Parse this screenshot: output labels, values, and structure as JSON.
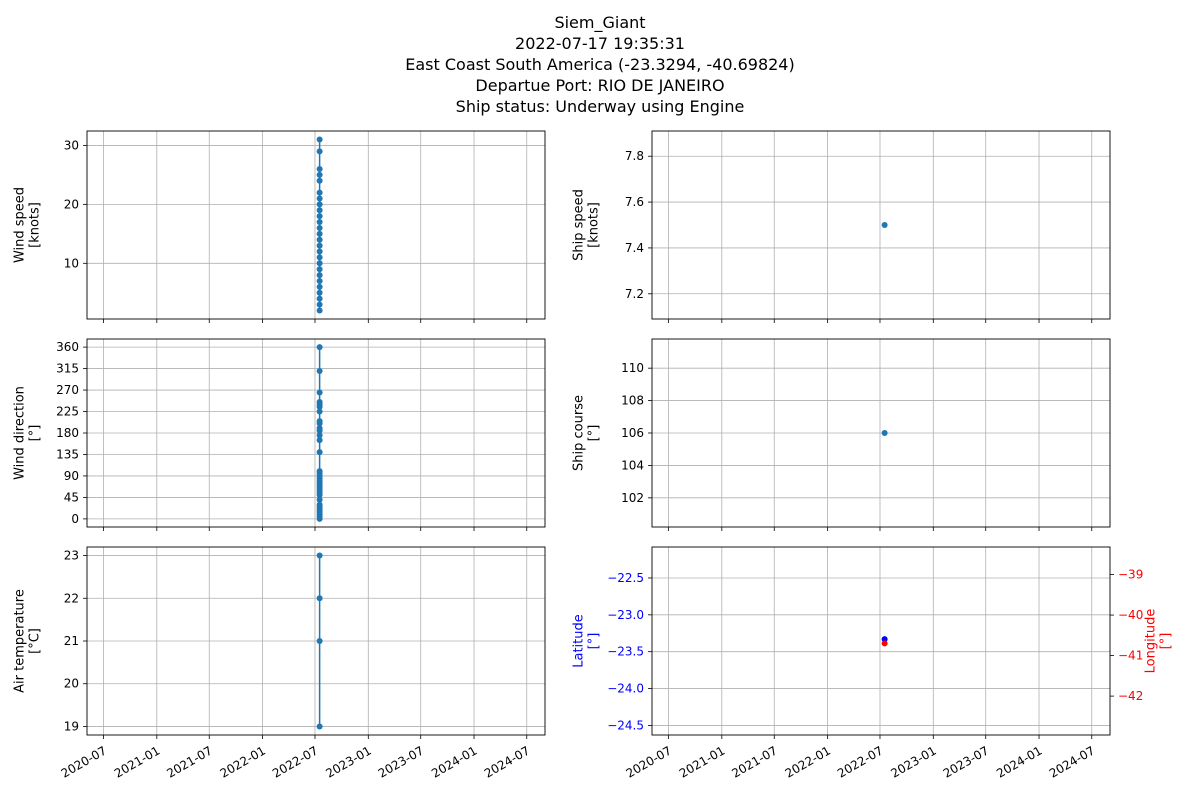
{
  "header": {
    "lines": [
      "Siem_Giant",
      "2022-07-17 19:35:31",
      "East Coast South America (-23.3294, -40.69824)",
      "Departue Port: RIO DE JANEIRO",
      "Ship status: Underway using Engine"
    ]
  },
  "colors": {
    "series": "#1f77b4",
    "lat": "#0000ff",
    "lon": "#ff0000",
    "grid": "#b0b0b0"
  },
  "chart_data": [
    {
      "type": "line",
      "ylabel": [
        "Wind speed",
        "[knots]"
      ],
      "xlim": [
        "2020-05-05",
        "2024-09-02"
      ],
      "ylim": [
        0.55,
        32.45
      ],
      "yticks": [
        10,
        20,
        30
      ],
      "yticklabels": [
        "10",
        "20",
        "30"
      ],
      "series": [
        {
          "x": "2022-07-17",
          "values": [
            2,
            3,
            4,
            5,
            6,
            7,
            8,
            9,
            10,
            11,
            12,
            13,
            14,
            15,
            16,
            17,
            18,
            19,
            20,
            21,
            22,
            24,
            25,
            26,
            29,
            31
          ]
        }
      ]
    },
    {
      "type": "line",
      "ylabel": [
        "Ship speed",
        "[knots]"
      ],
      "xlim": [
        "2020-05-05",
        "2024-09-02"
      ],
      "ylim": [
        7.09,
        7.91
      ],
      "yticks": [
        7.2,
        7.4,
        7.6,
        7.8
      ],
      "yticklabels": [
        "7.2",
        "7.4",
        "7.6",
        "7.8"
      ],
      "series": [
        {
          "x": "2022-07-17",
          "values": [
            7.5
          ]
        }
      ]
    },
    {
      "type": "line",
      "ylabel": [
        "Wind direction",
        "[°]"
      ],
      "xlim": [
        "2020-05-05",
        "2024-09-02"
      ],
      "ylim": [
        -17,
        377
      ],
      "yticks": [
        0,
        45,
        90,
        135,
        180,
        225,
        270,
        315,
        360
      ],
      "yticklabels": [
        "0",
        "45",
        "90",
        "135",
        "180",
        "225",
        "270",
        "315",
        "360"
      ],
      "series": [
        {
          "x": "2022-07-17",
          "values": [
            0,
            5,
            10,
            15,
            20,
            25,
            30,
            40,
            50,
            55,
            60,
            65,
            70,
            75,
            80,
            85,
            90,
            95,
            100,
            140,
            165,
            175,
            185,
            190,
            200,
            205,
            225,
            235,
            240,
            245,
            265,
            310,
            360
          ]
        }
      ]
    },
    {
      "type": "line",
      "ylabel": [
        "Ship course",
        "[°]"
      ],
      "xlim": [
        "2020-05-05",
        "2024-09-02"
      ],
      "ylim": [
        100.2,
        111.8
      ],
      "yticks": [
        102,
        104,
        106,
        108,
        110
      ],
      "yticklabels": [
        "102",
        "104",
        "106",
        "108",
        "110"
      ],
      "series": [
        {
          "x": "2022-07-17",
          "values": [
            106
          ]
        }
      ]
    },
    {
      "type": "line",
      "ylabel": [
        "Air temperature",
        "[°C]"
      ],
      "xlim": [
        "2020-05-05",
        "2024-09-02"
      ],
      "ylim": [
        18.8,
        23.2
      ],
      "yticks": [
        19,
        20,
        21,
        22,
        23
      ],
      "yticklabels": [
        "19",
        "20",
        "21",
        "22",
        "23"
      ],
      "xticklabels": [
        "2020-07",
        "2021-01",
        "2021-07",
        "2022-01",
        "2022-07",
        "2023-01",
        "2023-07",
        "2024-01",
        "2024-07"
      ],
      "series": [
        {
          "x": "2022-07-17",
          "values": [
            19,
            21,
            22,
            23
          ]
        }
      ]
    },
    {
      "type": "scatter",
      "ylabel": [
        "Latitude",
        "[°]"
      ],
      "ylabel_right": [
        "Longitude",
        "[°]"
      ],
      "xlim": [
        "2020-05-05",
        "2024-09-02"
      ],
      "ylim": [
        -24.63,
        -22.08
      ],
      "yticks": [
        -24.5,
        -24.0,
        -23.5,
        -23.0,
        -22.5
      ],
      "yticklabels": [
        "−24.5",
        "−24.0",
        "−23.5",
        "−23.0",
        "−22.5"
      ],
      "ylim_right": [
        -42.96,
        -38.32
      ],
      "yticks_right": [
        -42,
        -41,
        -40,
        -39
      ],
      "yticklabels_right": [
        "−42",
        "−41",
        "−40",
        "−39"
      ],
      "xticklabels": [
        "2020-07",
        "2021-01",
        "2021-07",
        "2022-01",
        "2022-07",
        "2023-01",
        "2023-07",
        "2024-01",
        "2024-07"
      ],
      "series": [
        {
          "name": "Latitude",
          "x": "2022-07-17",
          "values": [
            -23.3294
          ]
        },
        {
          "name": "Longitude",
          "x": "2022-07-17",
          "values": [
            -40.69824
          ]
        }
      ]
    }
  ]
}
